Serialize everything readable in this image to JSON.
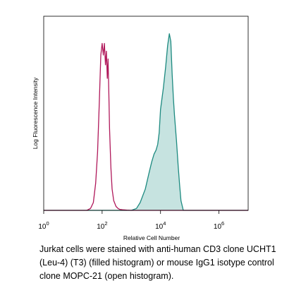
{
  "chart_data": {
    "type": "area",
    "title": "",
    "xlabel": "Log Fluorescence Intensity",
    "ylabel": "Relative Cell Number",
    "x_scale": "log",
    "xlim": [
      1,
      10000000
    ],
    "x_ticks": [
      {
        "value": 1,
        "base": "10",
        "exp": "0"
      },
      {
        "value": 100,
        "base": "10",
        "exp": "2"
      },
      {
        "value": 10000,
        "base": "10",
        "exp": "4"
      },
      {
        "value": 1000000,
        "base": "10",
        "exp": "6"
      }
    ],
    "ylim": [
      0,
      100
    ],
    "grid": false,
    "legend": "none",
    "series": [
      {
        "style": "filled",
        "color": "#1d8a80",
        "fill": "#c6e3e0",
        "x": [
          1,
          1000,
          1500,
          2000,
          3000,
          4000,
          5000,
          6000,
          7000,
          8000,
          9000,
          10000,
          12500,
          15000,
          17500,
          20000,
          22500,
          25000,
          27500,
          30000,
          35000,
          40000,
          45000,
          50000,
          60000,
          10000000
        ],
        "y": [
          0,
          0,
          1,
          4,
          11,
          19,
          25,
          29,
          31,
          34,
          40,
          52,
          63,
          74,
          85,
          91,
          87,
          70,
          58,
          49,
          36,
          23,
          13,
          5,
          0,
          0
        ]
      },
      {
        "style": "open",
        "color": "#b0185a",
        "x": [
          1,
          30,
          40,
          50,
          60,
          70,
          80,
          90,
          100,
          110,
          120,
          130,
          140,
          150,
          160,
          170,
          180,
          200,
          220,
          250,
          300,
          350,
          400,
          500,
          700,
          1000,
          10000000
        ],
        "y": [
          0,
          0,
          1,
          4,
          14,
          30,
          55,
          80,
          86,
          80,
          86,
          75,
          82,
          68,
          78,
          60,
          42,
          22,
          11,
          5,
          2,
          1,
          0.5,
          0.3,
          0.1,
          0,
          0
        ]
      }
    ]
  },
  "caption": {
    "lines": [
      "Jurkat cells were stained with anti-human CD3 clone UCHT1",
      "(Leu-4) (T3) (filled histogram) or mouse IgG1 isotype control",
      "clone MOPC-21 (open histogram)."
    ]
  }
}
